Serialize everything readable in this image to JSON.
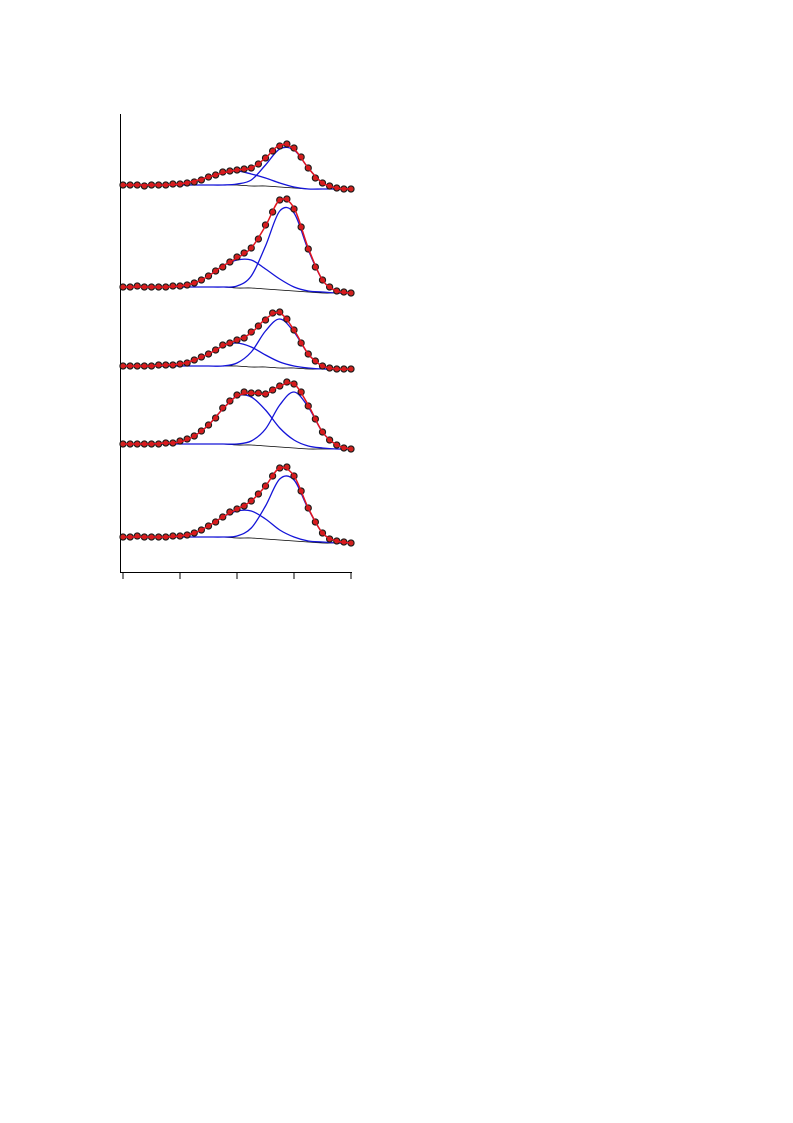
{
  "chart_data": {
    "type": "line",
    "xlim": [
      0,
      4
    ],
    "xticks": [
      0,
      1,
      2,
      3,
      4
    ],
    "ylim": [
      0,
      460
    ],
    "colors": {
      "points": "#d0241f",
      "points_edge": "#1a1a1a",
      "fit": "#e0141e",
      "component": "#1414d8",
      "background": "#000000"
    },
    "x": [
      0,
      0.125,
      0.25,
      0.375,
      0.5,
      0.625,
      0.75,
      0.875,
      1,
      1.125,
      1.25,
      1.375,
      1.5,
      1.625,
      1.75,
      1.875,
      2,
      2.125,
      2.25,
      2.375,
      2.5,
      2.625,
      2.75,
      2.875,
      3,
      3.125,
      3.25,
      3.375,
      3.5,
      3.625,
      3.75,
      3.875,
      4
    ],
    "curve_x": [
      0,
      0.25,
      0.5,
      0.75,
      1,
      1.25,
      1.5,
      1.75,
      2,
      2.25,
      2.5,
      2.75,
      3,
      3.25,
      3.5,
      3.75,
      4
    ],
    "series": [
      {
        "points": [
          387,
          387,
          387,
          386,
          387,
          387,
          387,
          388,
          388,
          389,
          390,
          392,
          395,
          397,
          400,
          401,
          402,
          403,
          404,
          408,
          414,
          421,
          426,
          428,
          424,
          415,
          404,
          394,
          389,
          386,
          384,
          383,
          383
        ],
        "fit": [
          387,
          387,
          387,
          387,
          388,
          391,
          395,
          399,
          402,
          404,
          414,
          427,
          423,
          404,
          389,
          384,
          383
        ],
        "component_1": [
          387,
          387,
          387,
          387,
          388,
          391,
          395,
          399,
          401,
          398,
          394,
          389,
          385,
          383,
          383,
          383,
          383
        ],
        "component_2": [
          387,
          387,
          387,
          387,
          387,
          387,
          387,
          387,
          388,
          392,
          407,
          423,
          422,
          404,
          389,
          384,
          383
        ],
        "background": [
          387,
          387,
          387,
          387,
          387,
          387,
          387,
          387,
          387,
          386,
          386,
          385,
          384,
          383,
          383,
          383,
          383
        ]
      },
      {
        "points": [
          285,
          285,
          286,
          285,
          285,
          285,
          285,
          286,
          286,
          287,
          289,
          292,
          296,
          301,
          305,
          310,
          315,
          319,
          324,
          333,
          347,
          360,
          372,
          373,
          363,
          345,
          323,
          305,
          292,
          285,
          281,
          280,
          279
        ],
        "fit": [
          285,
          285,
          285,
          285,
          286,
          289,
          296,
          306,
          314,
          324,
          346,
          372,
          364,
          324,
          292,
          281,
          279
        ],
        "component_1": [
          285,
          285,
          285,
          285,
          286,
          289,
          296,
          306,
          312,
          312,
          303,
          293,
          285,
          281,
          280,
          279,
          279
        ],
        "component_2": [
          285,
          285,
          285,
          285,
          285,
          285,
          285,
          285,
          286,
          296,
          326,
          361,
          359,
          322,
          292,
          281,
          279
        ],
        "background": [
          285,
          285,
          285,
          285,
          285,
          285,
          285,
          285,
          284,
          284,
          283,
          282,
          281,
          280,
          279,
          279,
          279
        ]
      },
      {
        "points": [
          206,
          206,
          206,
          206,
          206,
          207,
          207,
          207,
          208,
          209,
          212,
          215,
          218,
          222,
          227,
          229,
          232,
          234,
          240,
          246,
          252,
          259,
          260,
          253,
          242,
          229,
          218,
          211,
          206,
          204,
          203,
          203,
          203
        ],
        "fit": [
          206,
          206,
          206,
          207,
          208,
          212,
          218,
          226,
          232,
          239,
          253,
          259,
          242,
          218,
          206,
          203,
          203
        ],
        "component_1": [
          206,
          206,
          206,
          207,
          208,
          212,
          218,
          226,
          229,
          225,
          217,
          210,
          206,
          204,
          203,
          203,
          203
        ],
        "component_2": [
          206,
          206,
          206,
          206,
          206,
          206,
          206,
          206,
          209,
          220,
          241,
          253,
          240,
          218,
          206,
          203,
          203
        ],
        "background": [
          206,
          206,
          206,
          206,
          206,
          206,
          206,
          206,
          206,
          205,
          205,
          204,
          204,
          203,
          203,
          203,
          203
        ]
      },
      {
        "points": [
          128,
          128,
          128,
          128,
          128,
          128,
          129,
          129,
          131,
          133,
          136,
          141,
          147,
          154,
          164,
          171,
          177,
          180,
          179,
          179,
          178,
          182,
          186,
          190,
          188,
          180,
          166,
          153,
          140,
          132,
          127,
          124,
          123
        ],
        "fit": [
          128,
          128,
          128,
          129,
          130,
          136,
          147,
          163,
          176,
          179,
          178,
          186,
          188,
          167,
          140,
          127,
          123
        ],
        "component_1": [
          128,
          128,
          128,
          129,
          130,
          136,
          147,
          163,
          176,
          175,
          162,
          144,
          132,
          126,
          124,
          123,
          123
        ],
        "component_2": [
          128,
          128,
          128,
          128,
          128,
          128,
          128,
          128,
          128,
          131,
          143,
          167,
          180,
          165,
          140,
          127,
          123
        ],
        "background": [
          128,
          128,
          128,
          128,
          128,
          128,
          128,
          128,
          127,
          127,
          126,
          125,
          124,
          123,
          123,
          123,
          123
        ]
      },
      {
        "points": [
          35,
          35,
          36,
          35,
          35,
          35,
          35,
          36,
          36,
          37,
          39,
          42,
          46,
          50,
          55,
          60,
          63,
          66,
          71,
          78,
          86,
          96,
          104,
          105,
          96,
          81,
          64,
          50,
          39,
          33,
          31,
          30,
          29
        ],
        "fit": [
          35,
          35,
          35,
          35,
          36,
          39,
          46,
          55,
          63,
          71,
          86,
          104,
          96,
          64,
          39,
          31,
          29
        ],
        "component_1": [
          35,
          35,
          35,
          35,
          36,
          39,
          46,
          55,
          61,
          61,
          53,
          42,
          35,
          31,
          30,
          29,
          29
        ],
        "component_2": [
          35,
          35,
          35,
          35,
          35,
          35,
          35,
          35,
          36,
          44,
          66,
          93,
          92,
          63,
          39,
          31,
          29
        ],
        "background": [
          35,
          35,
          35,
          35,
          35,
          35,
          35,
          35,
          34,
          34,
          33,
          32,
          31,
          30,
          29,
          29,
          29
        ]
      }
    ]
  }
}
